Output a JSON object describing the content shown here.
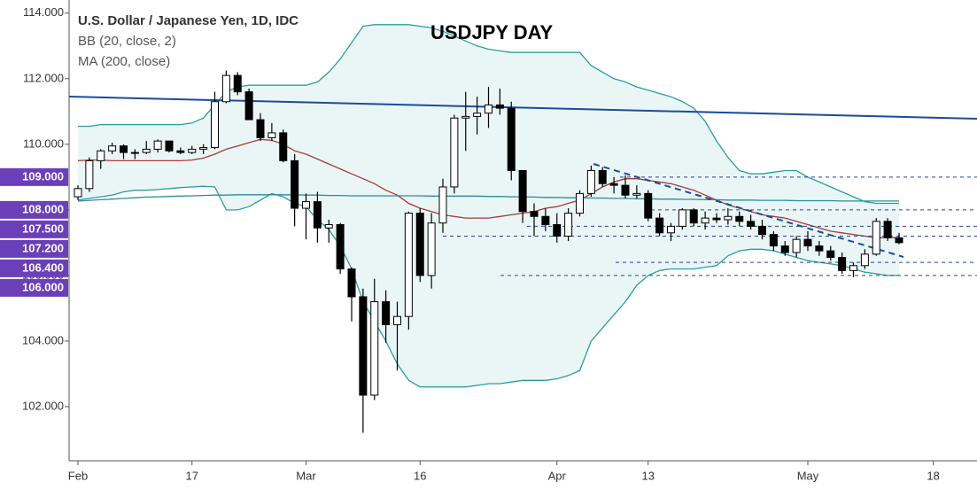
{
  "chart_data": {
    "type": "candlestick",
    "title": "USDJPY DAY",
    "subtitle": "U.S. Dollar / Japanese Yen, 1D, IDC",
    "categories": [
      "Feb",
      null,
      null,
      null,
      null,
      null,
      null,
      null,
      null,
      null,
      "17",
      null,
      null,
      null,
      null,
      null,
      null,
      null,
      null,
      null,
      "Mar",
      null,
      null,
      null,
      null,
      null,
      null,
      null,
      null,
      null,
      "16",
      null,
      null,
      null,
      null,
      null,
      null,
      null,
      null,
      null,
      null,
      null,
      "Apr",
      null,
      null,
      null,
      null,
      null,
      null,
      null,
      "13",
      null,
      null,
      null,
      null,
      null,
      null,
      null,
      null,
      null,
      null,
      null,
      null,
      null,
      "May",
      null,
      null,
      null,
      null,
      null,
      null,
      null,
      null,
      null,
      null,
      "18"
    ],
    "open": [
      108.4,
      108.65,
      109.5,
      109.8,
      109.95,
      109.75,
      109.75,
      109.85,
      110.1,
      109.8,
      109.75,
      109.85,
      109.9,
      111.3,
      112.1,
      111.6,
      110.75,
      110.2,
      110.35,
      109.5,
      108.05,
      108.25,
      107.45,
      107.55,
      106.2,
      105.35,
      102.35,
      105.2,
      104.5,
      104.75,
      107.9,
      106.0,
      107.6,
      108.7,
      110.8,
      110.85,
      110.95,
      111.2,
      111.1,
      109.2,
      107.95,
      107.8,
      107.55,
      107.2,
      107.9,
      108.5,
      109.2,
      108.8,
      108.75,
      108.45,
      108.5,
      107.75,
      107.3,
      107.5,
      108.0,
      107.6,
      107.75,
      107.7,
      107.8,
      107.65,
      107.5,
      107.25,
      106.9,
      106.7,
      107.1,
      106.9,
      106.75,
      106.55,
      106.15,
      106.3,
      106.65,
      107.65,
      107.15,
      null,
      null,
      null
    ],
    "high": [
      108.75,
      109.6,
      109.85,
      110.05,
      110.0,
      109.85,
      110.1,
      110.15,
      110.1,
      109.9,
      109.95,
      110.0,
      111.6,
      112.25,
      112.2,
      111.7,
      110.95,
      110.65,
      110.45,
      109.7,
      108.5,
      108.55,
      107.7,
      107.6,
      106.25,
      105.6,
      105.9,
      105.55,
      105.2,
      107.95,
      108.05,
      107.9,
      108.95,
      110.9,
      111.6,
      111.45,
      111.75,
      111.7,
      111.3,
      109.2,
      108.2,
      108.05,
      107.9,
      108.05,
      108.6,
      109.35,
      109.3,
      109.0,
      109.05,
      108.75,
      108.6,
      107.9,
      107.6,
      108.05,
      108.05,
      107.95,
      107.9,
      108.05,
      107.95,
      107.85,
      107.7,
      107.35,
      107.05,
      107.2,
      107.35,
      107.05,
      106.9,
      106.7,
      106.4,
      106.8,
      107.75,
      107.75,
      107.3,
      null,
      null,
      null
    ],
    "low": [
      108.3,
      108.55,
      109.25,
      109.7,
      109.55,
      109.55,
      109.7,
      109.75,
      109.75,
      109.7,
      109.7,
      109.7,
      109.85,
      111.25,
      111.5,
      110.75,
      110.1,
      110.1,
      109.45,
      107.5,
      107.1,
      107.0,
      107.0,
      106.05,
      104.6,
      101.2,
      102.2,
      103.95,
      103.1,
      104.35,
      105.8,
      105.6,
      107.3,
      108.5,
      109.8,
      110.3,
      110.5,
      110.9,
      108.9,
      107.6,
      107.2,
      107.35,
      107.0,
      107.05,
      107.8,
      108.4,
      108.7,
      108.5,
      108.35,
      108.35,
      107.65,
      107.2,
      107.05,
      107.4,
      107.5,
      107.4,
      107.6,
      107.55,
      107.5,
      107.4,
      107.1,
      106.75,
      106.6,
      106.55,
      106.75,
      106.6,
      106.45,
      106.05,
      105.95,
      106.2,
      106.6,
      107.05,
      106.95,
      null,
      null,
      null
    ],
    "close": [
      108.65,
      109.5,
      109.8,
      109.95,
      109.75,
      109.75,
      109.85,
      110.1,
      109.8,
      109.75,
      109.85,
      109.9,
      111.3,
      112.1,
      111.6,
      110.75,
      110.2,
      110.35,
      109.5,
      108.05,
      108.25,
      107.45,
      107.55,
      106.2,
      105.35,
      102.35,
      105.2,
      104.5,
      104.75,
      107.9,
      106.0,
      107.6,
      108.7,
      110.8,
      110.85,
      110.95,
      111.2,
      111.1,
      109.2,
      107.95,
      107.8,
      107.55,
      107.2,
      107.9,
      108.5,
      109.2,
      108.8,
      108.75,
      108.45,
      108.5,
      107.75,
      107.3,
      107.5,
      108.0,
      107.6,
      107.75,
      107.7,
      107.8,
      107.65,
      107.5,
      107.25,
      106.9,
      106.7,
      107.1,
      106.9,
      106.75,
      106.55,
      106.15,
      106.3,
      106.65,
      107.65,
      107.15,
      107.0,
      null,
      null,
      null
    ],
    "up_color": "#ffffff",
    "down_color": "#000000",
    "indicators": [
      {
        "label": "BB (20, close, 2)",
        "color": "#2a9d9d",
        "basis_color": "#a33a3a",
        "fill": "#eaf6f6",
        "upper": [
          110.55,
          110.55,
          110.6,
          110.6,
          110.6,
          110.6,
          110.6,
          110.6,
          110.6,
          110.6,
          110.65,
          110.8,
          111.2,
          111.6,
          111.75,
          111.8,
          111.8,
          111.8,
          111.8,
          111.8,
          111.8,
          111.9,
          112.2,
          112.6,
          113.1,
          113.6,
          113.65,
          113.65,
          113.65,
          113.65,
          113.6,
          113.55,
          113.45,
          113.3,
          113.15,
          113.0,
          112.9,
          112.85,
          112.8,
          112.8,
          112.8,
          112.8,
          112.8,
          112.8,
          112.8,
          112.4,
          112.2,
          112.0,
          111.9,
          111.75,
          111.65,
          111.55,
          111.45,
          111.3,
          111.1,
          110.7,
          110.1,
          109.6,
          109.2,
          109.1,
          109.1,
          109.15,
          109.2,
          109.2,
          109.0,
          108.85,
          108.7,
          108.55,
          108.4,
          108.25,
          108.2,
          108.2,
          108.2,
          null,
          null,
          null
        ],
        "basis": [
          109.5,
          109.52,
          109.52,
          109.5,
          109.5,
          109.5,
          109.5,
          109.5,
          109.5,
          109.5,
          109.52,
          109.58,
          109.7,
          109.85,
          109.95,
          110.05,
          110.15,
          110.12,
          110.0,
          109.8,
          109.7,
          109.55,
          109.4,
          109.25,
          109.1,
          108.95,
          108.8,
          108.6,
          108.45,
          108.2,
          108.05,
          107.95,
          107.85,
          107.8,
          107.75,
          107.75,
          107.75,
          107.8,
          107.85,
          107.9,
          107.95,
          108.05,
          108.1,
          108.2,
          108.3,
          108.5,
          108.7,
          108.85,
          108.95,
          108.95,
          108.9,
          108.85,
          108.8,
          108.7,
          108.6,
          108.45,
          108.3,
          108.15,
          108.05,
          107.95,
          107.85,
          107.8,
          107.75,
          107.65,
          107.55,
          107.45,
          107.35,
          107.3,
          107.25,
          107.2,
          107.15,
          107.15,
          107.15,
          null,
          null,
          null
        ],
        "lower": [
          108.3,
          108.35,
          108.4,
          108.45,
          108.55,
          108.6,
          108.6,
          108.62,
          108.65,
          108.68,
          108.7,
          108.72,
          108.7,
          108.0,
          108.0,
          108.1,
          108.3,
          108.5,
          108.4,
          108.2,
          108.1,
          107.7,
          107.4,
          106.9,
          106.2,
          105.2,
          104.6,
          104.0,
          103.3,
          102.8,
          102.6,
          102.6,
          102.6,
          102.6,
          102.6,
          102.65,
          102.7,
          102.7,
          102.75,
          102.8,
          102.8,
          102.8,
          102.85,
          102.95,
          103.1,
          104.0,
          104.4,
          104.8,
          105.2,
          105.7,
          106.0,
          106.15,
          106.2,
          106.2,
          106.2,
          106.25,
          106.3,
          106.6,
          106.75,
          106.8,
          106.8,
          106.75,
          106.65,
          106.55,
          106.45,
          106.4,
          106.35,
          106.3,
          106.2,
          106.1,
          106.05,
          106.0,
          106.0,
          null,
          null,
          null
        ]
      },
      {
        "label": "MA (200, close)",
        "color": "#2a8c9c",
        "values": [
          108.27,
          108.29,
          108.31,
          108.33,
          108.35,
          108.37,
          108.39,
          108.4,
          108.41,
          108.42,
          108.43,
          108.44,
          108.45,
          108.45,
          108.46,
          108.46,
          108.46,
          108.46,
          108.46,
          108.46,
          108.45,
          108.45,
          108.44,
          108.44,
          108.43,
          108.43,
          108.43,
          108.43,
          108.43,
          108.43,
          108.43,
          108.42,
          108.42,
          108.42,
          108.42,
          108.42,
          108.41,
          108.41,
          108.4,
          108.4,
          108.39,
          108.38,
          108.38,
          108.37,
          108.37,
          108.36,
          108.36,
          108.35,
          108.35,
          108.34,
          108.34,
          108.33,
          108.33,
          108.32,
          108.32,
          108.31,
          108.31,
          108.3,
          108.3,
          108.3,
          108.29,
          108.29,
          108.29,
          108.28,
          108.28,
          108.28,
          108.28,
          108.27,
          108.27,
          108.27,
          108.27,
          108.27,
          108.27,
          null,
          null,
          null
        ]
      }
    ],
    "ylim": [
      100.35,
      114.4
    ],
    "yticks": [
      {
        "value": 102,
        "label": "102.000"
      },
      {
        "value": 104,
        "label": "104.000"
      },
      {
        "value": 106,
        "label": "106.000"
      },
      {
        "value": 108,
        "label": "108.000"
      },
      {
        "value": 110,
        "label": "110.000"
      },
      {
        "value": 112,
        "label": "112.000"
      },
      {
        "value": 114,
        "label": "114.000"
      }
    ],
    "price_levels": [
      {
        "value": 109,
        "label": "109.000"
      },
      {
        "value": 108,
        "label": "108.000"
      },
      {
        "value": 107.5,
        "label": "107.500"
      },
      {
        "value": 107.2,
        "label": "107.200"
      },
      {
        "value": 106.4,
        "label": "106.400"
      },
      {
        "value": 106,
        "label": "106.000"
      }
    ],
    "level_color": "#6a3fb8"
  }
}
